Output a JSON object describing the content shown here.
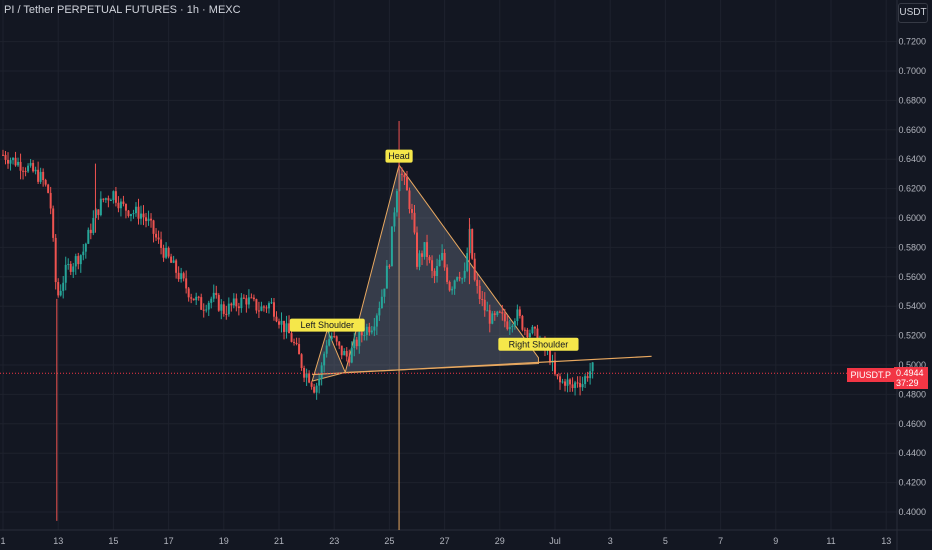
{
  "header": {
    "title": "PI / Tether PERPETUAL FUTURES · 1h · MEXC"
  },
  "currency_button": "USDT",
  "last_price": {
    "symbol": "PIUSDT.P",
    "price": "0.4944",
    "countdown": "37:29"
  },
  "colors": {
    "background": "#131722",
    "up": "#26a69a",
    "down": "#ef5350",
    "pattern": "#e8a860",
    "label_bg": "#f5e74a",
    "last_price": "#f23645"
  },
  "chart_data": {
    "type": "candlestick",
    "title": "PI / Tether PERPETUAL FUTURES · 1h · MEXC",
    "ylim": [
      0.39,
      0.735
    ],
    "y_ticks": [
      "0.4000",
      "0.4200",
      "0.4400",
      "0.4600",
      "0.4800",
      "0.5000",
      "0.5200",
      "0.5400",
      "0.5600",
      "0.5800",
      "0.6000",
      "0.6200",
      "0.6400",
      "0.6600",
      "0.6800",
      "0.7000",
      "0.7200"
    ],
    "x_ticks": [
      "1",
      "13",
      "15",
      "17",
      "19",
      "21",
      "23",
      "25",
      "27",
      "29",
      "Jul",
      "3",
      "5",
      "7",
      "9",
      "11",
      "13"
    ],
    "x_tick_days": [
      11,
      13,
      15,
      17,
      19,
      21,
      23,
      25,
      27,
      29,
      31,
      33,
      35,
      37,
      39,
      41,
      43
    ],
    "price_path": [
      [
        11.0,
        0.643
      ],
      [
        11.9,
        0.634
      ],
      [
        12.4,
        0.627
      ],
      [
        12.7,
        0.615
      ],
      [
        12.95,
        0.545
      ],
      [
        13.3,
        0.565
      ],
      [
        13.9,
        0.577
      ],
      [
        14.3,
        0.6
      ],
      [
        14.6,
        0.612
      ],
      [
        15.0,
        0.617
      ],
      [
        15.3,
        0.608
      ],
      [
        15.7,
        0.604
      ],
      [
        16.0,
        0.603
      ],
      [
        16.3,
        0.596
      ],
      [
        16.6,
        0.584
      ],
      [
        17.0,
        0.572
      ],
      [
        17.4,
        0.56
      ],
      [
        17.8,
        0.548
      ],
      [
        18.2,
        0.54
      ],
      [
        18.6,
        0.546
      ],
      [
        19.0,
        0.537
      ],
      [
        19.4,
        0.541
      ],
      [
        19.8,
        0.545
      ],
      [
        20.3,
        0.538
      ],
      [
        20.7,
        0.542
      ],
      [
        21.1,
        0.528
      ],
      [
        21.4,
        0.52
      ],
      [
        21.7,
        0.507
      ],
      [
        21.9,
        0.496
      ],
      [
        22.1,
        0.492
      ],
      [
        22.3,
        0.484
      ],
      [
        22.5,
        0.493
      ],
      [
        22.7,
        0.515
      ],
      [
        22.9,
        0.52
      ],
      [
        23.2,
        0.51
      ],
      [
        23.5,
        0.505
      ],
      [
        23.8,
        0.515
      ],
      [
        24.1,
        0.524
      ],
      [
        24.4,
        0.528
      ],
      [
        24.7,
        0.545
      ],
      [
        25.0,
        0.572
      ],
      [
        25.2,
        0.61
      ],
      [
        25.35,
        0.635
      ],
      [
        25.6,
        0.62
      ],
      [
        25.8,
        0.604
      ],
      [
        26.0,
        0.57
      ],
      [
        26.3,
        0.58
      ],
      [
        26.6,
        0.558
      ],
      [
        26.9,
        0.574
      ],
      [
        27.2,
        0.552
      ],
      [
        27.5,
        0.565
      ],
      [
        27.7,
        0.556
      ],
      [
        27.9,
        0.59
      ],
      [
        28.1,
        0.555
      ],
      [
        28.4,
        0.54
      ],
      [
        28.7,
        0.53
      ],
      [
        29.0,
        0.533
      ],
      [
        29.3,
        0.528
      ],
      [
        29.6,
        0.535
      ],
      [
        29.9,
        0.525
      ],
      [
        30.2,
        0.522
      ],
      [
        30.5,
        0.514
      ],
      [
        30.8,
        0.507
      ],
      [
        31.0,
        0.492
      ],
      [
        31.2,
        0.487
      ],
      [
        31.4,
        0.49
      ],
      [
        31.6,
        0.483
      ],
      [
        31.8,
        0.49
      ],
      [
        32.0,
        0.488
      ],
      [
        32.2,
        0.495
      ],
      [
        32.4,
        0.498
      ]
    ],
    "spikes": [
      {
        "day": 12.95,
        "high": 0.545,
        "low": 0.394
      },
      {
        "day": 14.35,
        "high": 0.637,
        "low": 0.59
      },
      {
        "day": 25.35,
        "high": 0.666,
        "low": 0.6
      },
      {
        "day": 27.9,
        "high": 0.6,
        "low": 0.555
      }
    ],
    "annotations": [
      {
        "label": "Left Shoulder",
        "day": 22.75,
        "price": 0.522
      },
      {
        "label": "Head",
        "day": 25.35,
        "price": 0.637
      },
      {
        "label": "Right Shoulder",
        "day": 30.4,
        "price": 0.509
      }
    ],
    "pattern_polygon": [
      [
        22.2,
        0.489
      ],
      [
        22.75,
        0.524
      ],
      [
        23.4,
        0.495
      ],
      [
        25.35,
        0.636
      ],
      [
        30.4,
        0.505
      ],
      [
        30.4,
        0.501
      ],
      [
        23.4,
        0.495
      ]
    ],
    "neckline": [
      [
        22.2,
        0.4935
      ],
      [
        34.5,
        0.5059
      ]
    ],
    "vertical_line_day": 25.35,
    "last_price_value": 0.4944
  }
}
